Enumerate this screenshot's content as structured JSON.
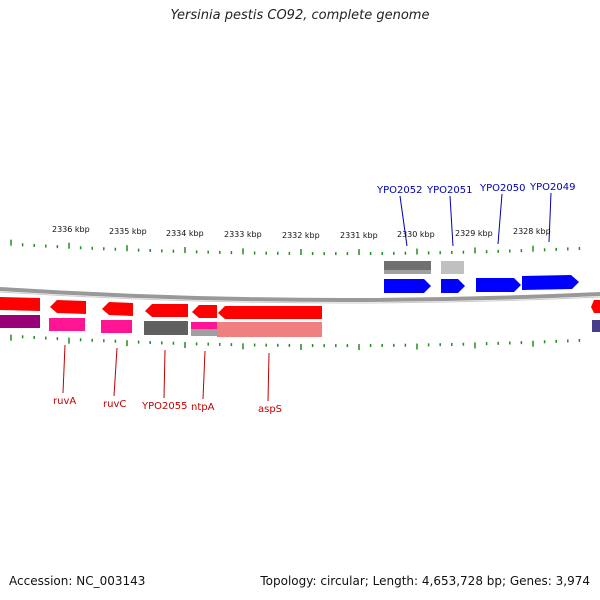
{
  "title": "Yersinia pestis CO92, complete genome",
  "footer": {
    "accession": "Accession: NC_003143",
    "summary": "Topology: circular; Length: 4,653,728 bp; Genes: 3,974"
  },
  "ruler": {
    "labels": [
      "2336 kbp",
      "2335 kbp",
      "2334 kbp",
      "2333 kbp",
      "2332 kbp",
      "2331 kbp",
      "2330 kbp",
      "2329 kbp",
      "2328 kbp"
    ]
  },
  "colors": {
    "forward_gene": "#0000ff",
    "reverse_gene": "#ff0000",
    "tick": "#228b22",
    "backbone": "#888888"
  },
  "genes_top": [
    {
      "label": "YPO2052"
    },
    {
      "label": "YPO2051"
    },
    {
      "label": "YPO2050"
    },
    {
      "label": "YPO2049"
    }
  ],
  "genes_bottom": [
    {
      "label": "ruvA"
    },
    {
      "label": "ruvC"
    },
    {
      "label": "YPO2055"
    },
    {
      "label": "ntpA"
    },
    {
      "label": "aspS"
    }
  ]
}
